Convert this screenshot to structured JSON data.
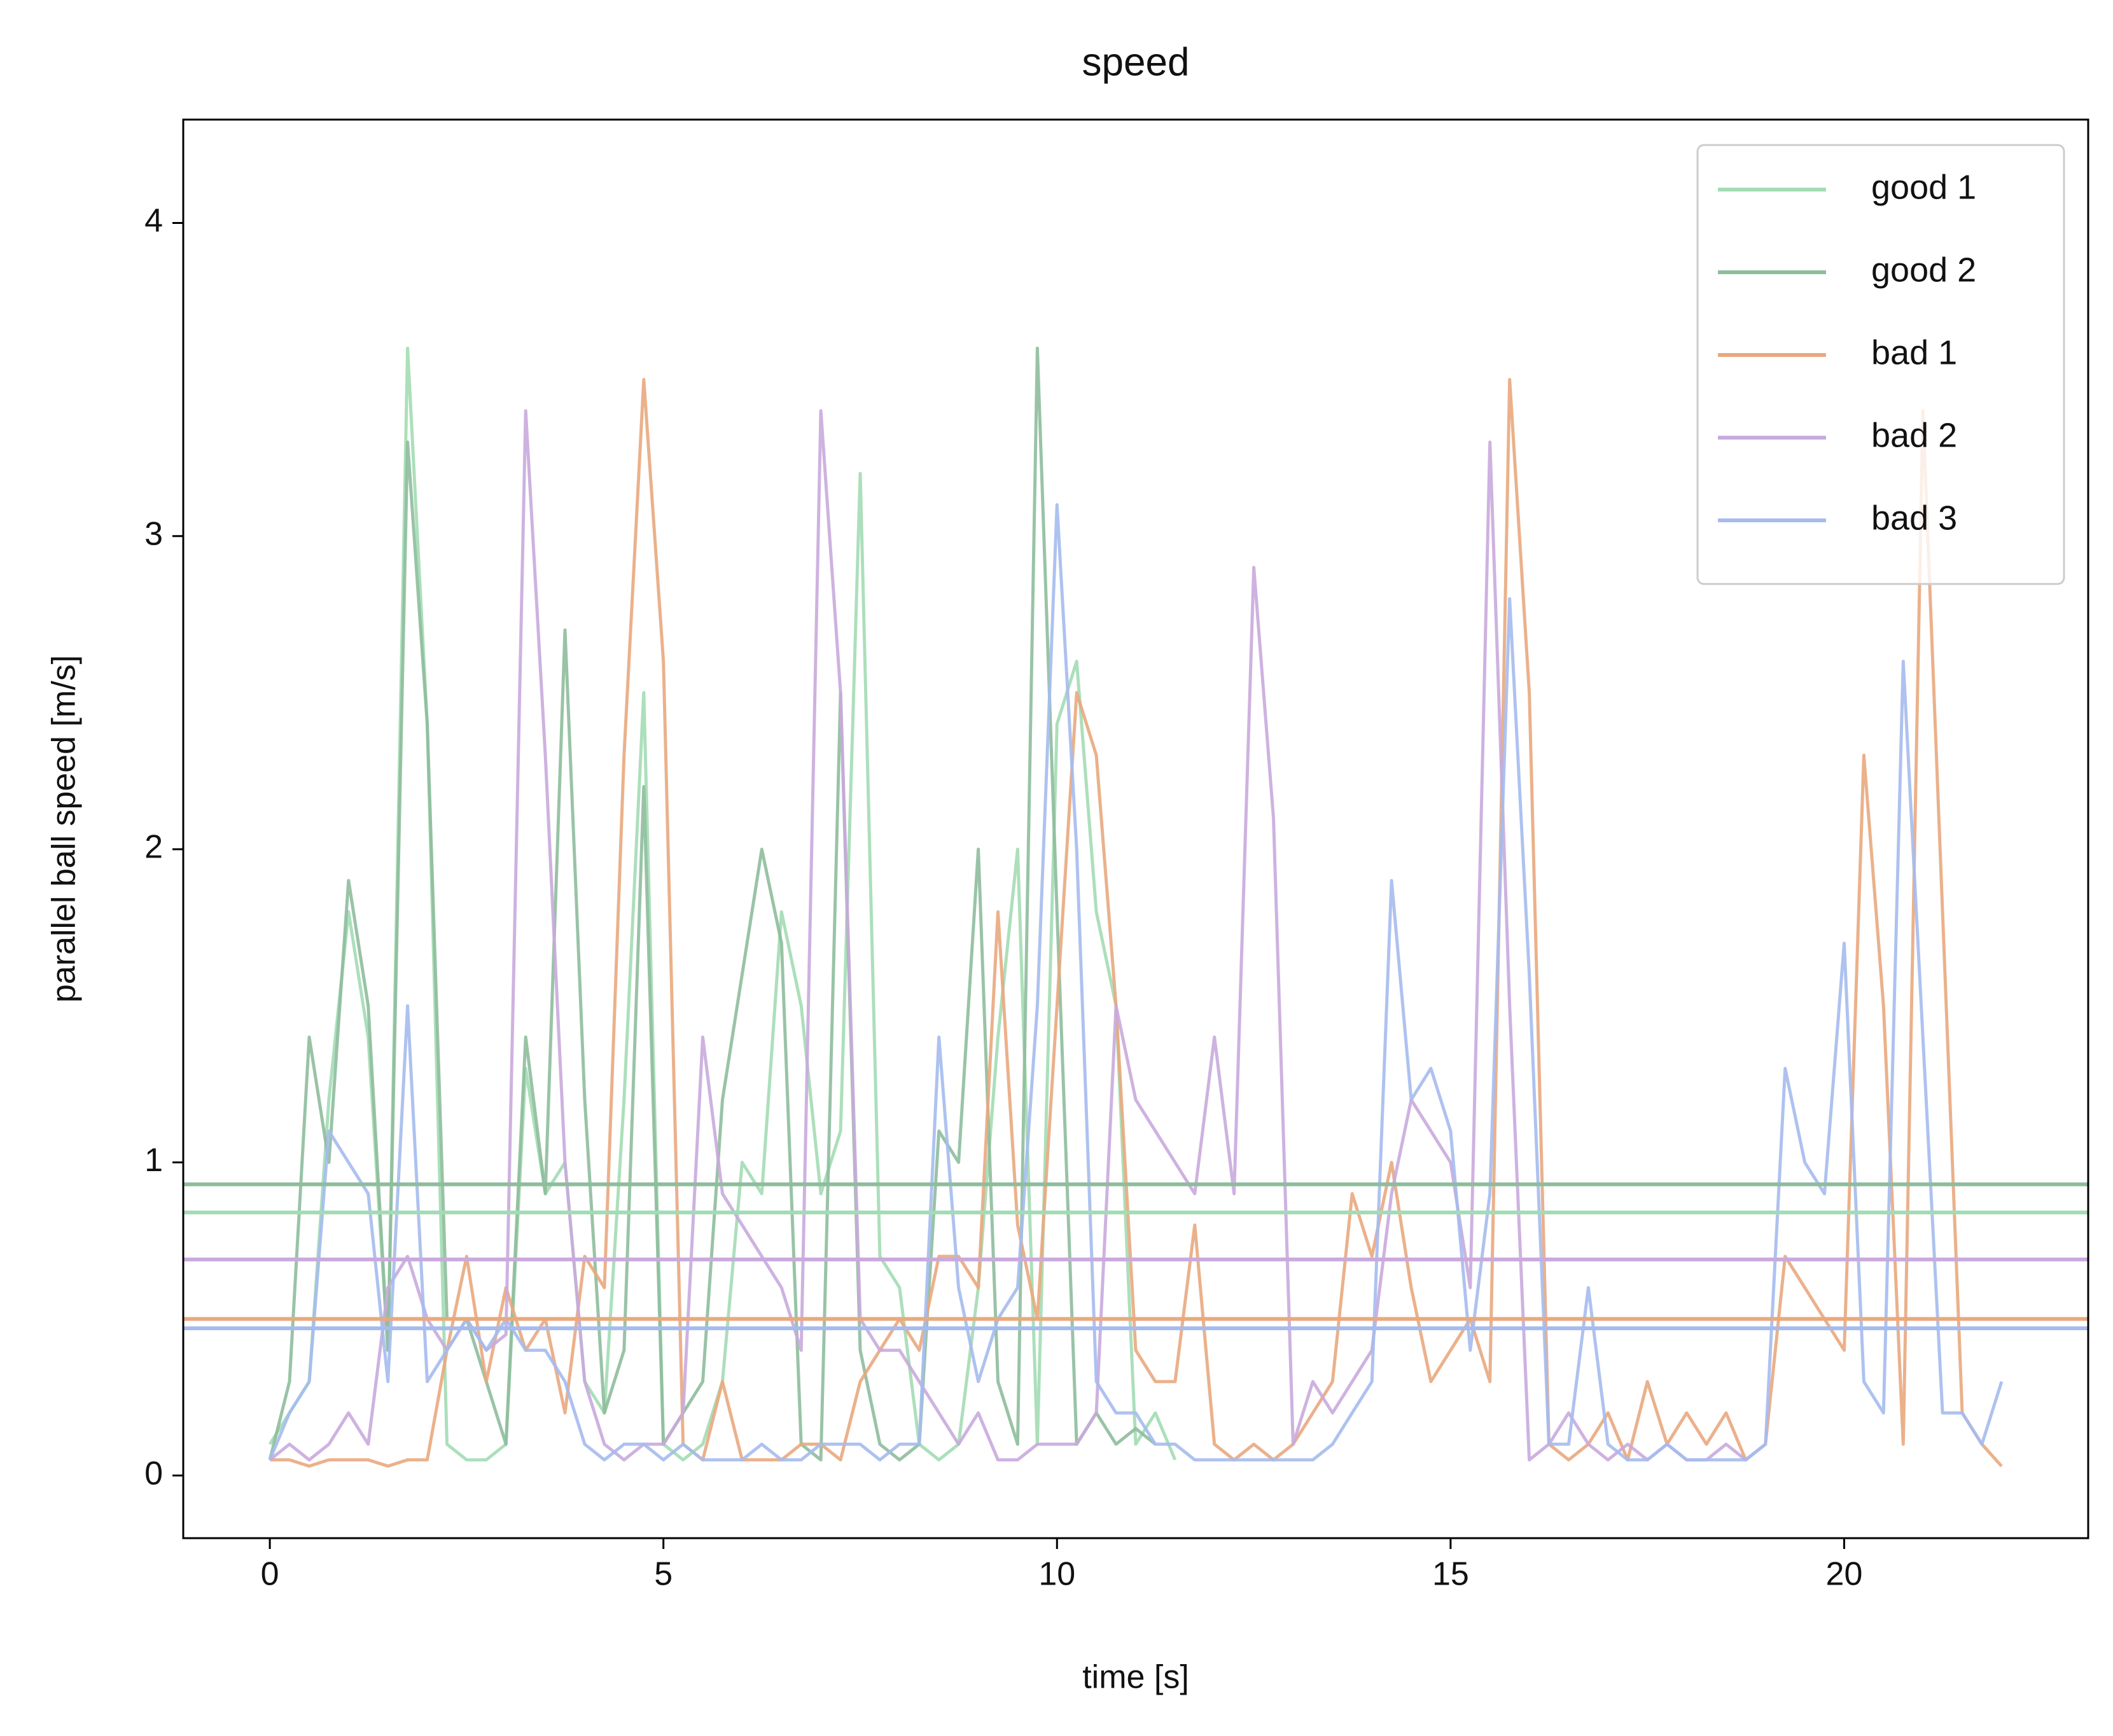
{
  "chart_data": {
    "type": "line",
    "title": "speed",
    "x_label": "time [s]",
    "y_label": "parallel ball speed [m/s]",
    "x": [
      0,
      0.25,
      0.5,
      0.75,
      1,
      1.25,
      1.5,
      1.75,
      2,
      2.25,
      2.5,
      2.75,
      3,
      3.25,
      3.5,
      3.75,
      4,
      4.25,
      4.5,
      4.75,
      5,
      5.25,
      5.5,
      5.75,
      6,
      6.25,
      6.5,
      6.75,
      7,
      7.25,
      7.5,
      7.75,
      8,
      8.25,
      8.5,
      8.75,
      9,
      9.25,
      9.5,
      9.75,
      10,
      10.25,
      10.5,
      10.75,
      11,
      11.25,
      11.5,
      11.75,
      12,
      12.25,
      12.5,
      12.75,
      13,
      13.25,
      13.5,
      13.75,
      14,
      14.25,
      14.5,
      14.75,
      15,
      15.25,
      15.5,
      15.75,
      16,
      16.25,
      16.5,
      16.75,
      17,
      17.25,
      17.5,
      17.75,
      18,
      18.25,
      18.5,
      18.75,
      19,
      19.25,
      19.5,
      19.75,
      20,
      20.25,
      20.5,
      20.75,
      21,
      21.25,
      21.5,
      21.75,
      22
    ],
    "series": [
      {
        "name": "good 1",
        "color": "#a3dcb4",
        "hline": 0.84,
        "values": [
          0.1,
          0.2,
          0.3,
          1.2,
          1.8,
          1.4,
          0.4,
          3.6,
          2.4,
          0.1,
          0.05,
          0.05,
          0.1,
          1.3,
          0.9,
          1.0,
          0.3,
          0.2,
          1.2,
          2.5,
          0.1,
          0.05,
          0.1,
          0.3,
          1.0,
          0.9,
          1.8,
          1.5,
          0.9,
          1.1,
          3.2,
          0.7,
          0.6,
          0.1,
          0.05,
          0.1,
          0.6,
          1.4,
          2.0,
          0.1,
          2.4,
          2.6,
          1.8,
          1.5,
          0.1,
          0.2,
          0.05,
          null,
          null,
          null,
          null,
          null,
          null,
          null,
          null,
          null,
          null,
          null,
          null,
          null,
          null,
          null,
          null,
          null,
          null,
          null,
          null,
          null,
          null,
          null,
          null,
          null,
          null,
          null,
          null,
          null,
          null,
          null,
          null,
          null,
          null,
          null,
          null,
          null,
          null,
          null,
          null,
          null,
          null
        ]
      },
      {
        "name": "good 2",
        "color": "#8ebd9c",
        "hline": 0.93,
        "values": [
          0.05,
          0.3,
          1.4,
          1.0,
          1.9,
          1.5,
          0.4,
          3.3,
          2.4,
          0.5,
          0.5,
          0.3,
          0.1,
          1.4,
          0.9,
          2.7,
          1.2,
          0.2,
          0.4,
          2.2,
          0.1,
          0.2,
          0.3,
          1.2,
          1.6,
          2.0,
          1.7,
          0.1,
          0.05,
          2.5,
          0.4,
          0.1,
          0.05,
          0.1,
          1.1,
          1.0,
          2.0,
          0.3,
          0.1,
          3.6,
          1.8,
          0.1,
          0.2,
          0.1,
          0.15,
          0.1,
          null,
          null,
          null,
          null,
          null,
          null,
          null,
          null,
          null,
          null,
          null,
          null,
          null,
          null,
          null,
          null,
          null,
          null,
          null,
          null,
          null,
          null,
          null,
          null,
          null,
          null,
          null,
          null,
          null,
          null,
          null,
          null,
          null,
          null,
          null,
          null,
          null,
          null,
          null,
          null,
          null,
          null,
          null
        ]
      },
      {
        "name": "bad 1",
        "color": "#e9a97e",
        "hline": 0.5,
        "values": [
          0.05,
          0.05,
          0.03,
          0.05,
          0.05,
          0.05,
          0.03,
          0.05,
          0.05,
          0.4,
          0.7,
          0.3,
          0.6,
          0.4,
          0.5,
          0.2,
          0.7,
          0.6,
          2.3,
          3.5,
          2.6,
          0.1,
          0.05,
          0.3,
          0.05,
          0.05,
          0.05,
          0.1,
          0.1,
          0.05,
          0.3,
          0.4,
          0.5,
          0.4,
          0.7,
          0.7,
          0.6,
          1.8,
          0.8,
          0.5,
          1.5,
          2.5,
          2.3,
          1.5,
          0.4,
          0.3,
          0.3,
          0.8,
          0.1,
          0.05,
          0.1,
          0.05,
          0.1,
          0.2,
          0.3,
          0.9,
          0.7,
          1.0,
          0.6,
          0.3,
          0.4,
          0.5,
          0.3,
          3.5,
          2.5,
          0.1,
          0.05,
          0.1,
          0.2,
          0.05,
          0.3,
          0.1,
          0.2,
          0.1,
          0.2,
          0.05,
          0.1,
          0.7,
          0.6,
          0.5,
          0.4,
          2.3,
          1.5,
          0.1,
          3.4,
          1.8,
          0.2,
          0.1,
          0.03
        ]
      },
      {
        "name": "bad 2",
        "color": "#c9aadd",
        "hline": 0.69,
        "values": [
          0.05,
          0.1,
          0.05,
          0.1,
          0.2,
          0.1,
          0.6,
          0.7,
          0.5,
          0.4,
          0.5,
          0.4,
          0.45,
          3.4,
          2.3,
          1.0,
          0.3,
          0.1,
          0.05,
          0.1,
          0.1,
          0.2,
          1.4,
          0.9,
          0.8,
          0.7,
          0.6,
          0.4,
          3.4,
          2.5,
          0.5,
          0.4,
          0.4,
          0.3,
          0.2,
          0.1,
          0.2,
          0.05,
          0.05,
          0.1,
          0.1,
          0.1,
          0.2,
          1.5,
          1.2,
          1.1,
          1.0,
          0.9,
          1.4,
          0.9,
          2.9,
          2.1,
          0.1,
          0.3,
          0.2,
          0.3,
          0.4,
          0.9,
          1.2,
          1.1,
          1.0,
          0.6,
          3.3,
          1.5,
          0.05,
          0.1,
          0.2,
          0.1,
          0.05,
          0.1,
          0.05,
          0.1,
          0.05,
          0.05,
          0.1,
          0.05,
          0.1,
          null,
          null,
          null,
          null,
          null,
          null,
          null,
          null,
          null,
          null,
          null,
          null
        ]
      },
      {
        "name": "bad 3",
        "color": "#a5bbee",
        "hline": 0.47,
        "values": [
          0.05,
          0.2,
          0.3,
          1.1,
          1.0,
          0.9,
          0.3,
          1.5,
          0.3,
          0.4,
          0.5,
          0.4,
          0.5,
          0.4,
          0.4,
          0.3,
          0.1,
          0.05,
          0.1,
          0.1,
          0.05,
          0.1,
          0.05,
          0.05,
          0.05,
          0.1,
          0.05,
          0.05,
          0.1,
          0.1,
          0.1,
          0.05,
          0.1,
          0.1,
          1.4,
          0.6,
          0.3,
          0.5,
          0.6,
          1.5,
          3.1,
          2.0,
          0.3,
          0.2,
          0.2,
          0.1,
          0.1,
          0.05,
          0.05,
          0.05,
          0.05,
          0.05,
          0.05,
          0.05,
          0.1,
          0.2,
          0.3,
          1.9,
          1.2,
          1.3,
          1.1,
          0.4,
          0.9,
          2.8,
          1.6,
          0.1,
          0.1,
          0.6,
          0.1,
          0.05,
          0.05,
          0.1,
          0.05,
          0.05,
          0.05,
          0.05,
          0.1,
          1.3,
          1.0,
          0.9,
          1.7,
          0.3,
          0.2,
          2.6,
          1.4,
          0.2,
          0.2,
          0.1,
          0.3
        ]
      }
    ],
    "xlim": [
      -1.1,
      23.1
    ],
    "ylim": [
      -0.2,
      4.33
    ],
    "xticks": [
      0,
      5,
      10,
      15,
      20
    ],
    "yticks": [
      0,
      1,
      2,
      3,
      4
    ],
    "grid": false,
    "legend": "upper right"
  }
}
